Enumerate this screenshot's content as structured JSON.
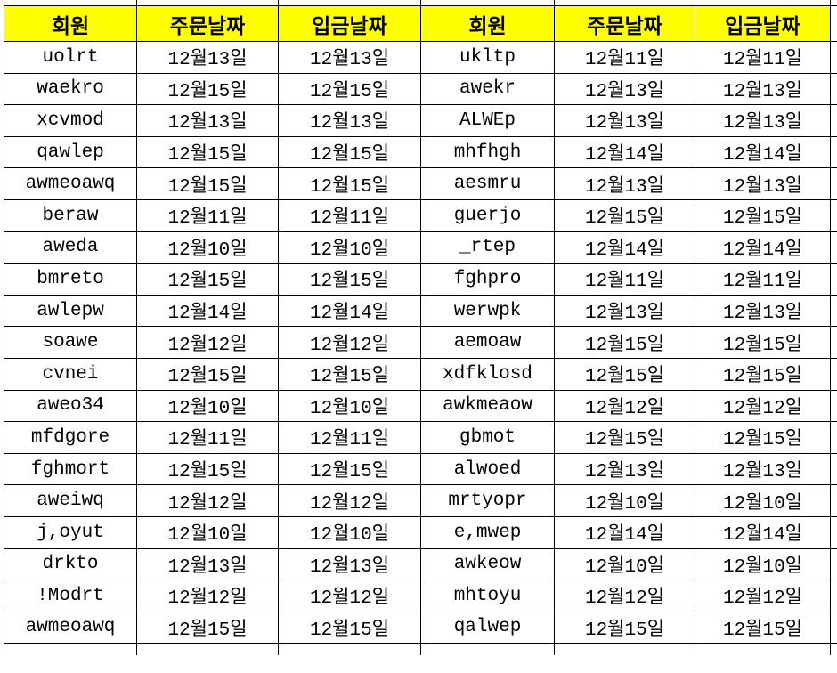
{
  "table": {
    "header": [
      "회원",
      "주문날짜",
      "입금날짜",
      "회원",
      "주문날짜",
      "입금날짜"
    ],
    "rows": [
      [
        "uolrt",
        "12월13일",
        "12월13일",
        "ukltp",
        "12월11일",
        "12월11일"
      ],
      [
        "waekro",
        "12월15일",
        "12월15일",
        "awekr",
        "12월13일",
        "12월13일"
      ],
      [
        "xcvmod",
        "12월13일",
        "12월13일",
        "ALWEp",
        "12월13일",
        "12월13일"
      ],
      [
        "qawlep",
        "12월15일",
        "12월15일",
        "mhfhgh",
        "12월14일",
        "12월14일"
      ],
      [
        "awmeoawq",
        "12월15일",
        "12월15일",
        "aesmru",
        "12월13일",
        "12월13일"
      ],
      [
        "beraw",
        "12월11일",
        "12월11일",
        "guerjo",
        "12월15일",
        "12월15일"
      ],
      [
        "aweda",
        "12월10일",
        "12월10일",
        "_rtep",
        "12월14일",
        "12월14일"
      ],
      [
        "bmreto",
        "12월15일",
        "12월15일",
        "fghpro",
        "12월11일",
        "12월11일"
      ],
      [
        "awlepw",
        "12월14일",
        "12월14일",
        "werwpk",
        "12월13일",
        "12월13일"
      ],
      [
        "soawe",
        "12월12일",
        "12월12일",
        "aemoaw",
        "12월15일",
        "12월15일"
      ],
      [
        "cvnei",
        "12월15일",
        "12월15일",
        "xdfklosd",
        "12월15일",
        "12월15일"
      ],
      [
        "aweo34",
        "12월10일",
        "12월10일",
        "awkmeaow",
        "12월12일",
        "12월12일"
      ],
      [
        "mfdgore",
        "12월11일",
        "12월11일",
        "gbmot",
        "12월15일",
        "12월15일"
      ],
      [
        "fghmort",
        "12월15일",
        "12월15일",
        "alwoed",
        "12월13일",
        "12월13일"
      ],
      [
        "aweiwq",
        "12월12일",
        "12월12일",
        "mrtyopr",
        "12월10일",
        "12월10일"
      ],
      [
        "j,oyut",
        "12월10일",
        "12월10일",
        "e,mwep",
        "12월14일",
        "12월14일"
      ],
      [
        "drkto",
        "12월13일",
        "12월13일",
        "awkeow",
        "12월10일",
        "12월10일"
      ],
      [
        "!Modrt",
        "12월12일",
        "12월12일",
        "mhtoyu",
        "12월12일",
        "12월12일"
      ],
      [
        "awmeoawq",
        "12월15일",
        "12월15일",
        "qalwep",
        "12월15일",
        "12월15일"
      ]
    ],
    "colors": {
      "header_bg": "#FFFF00",
      "border": "#000000",
      "cell_bg": "#FFFFFF",
      "text": "#000000"
    }
  }
}
